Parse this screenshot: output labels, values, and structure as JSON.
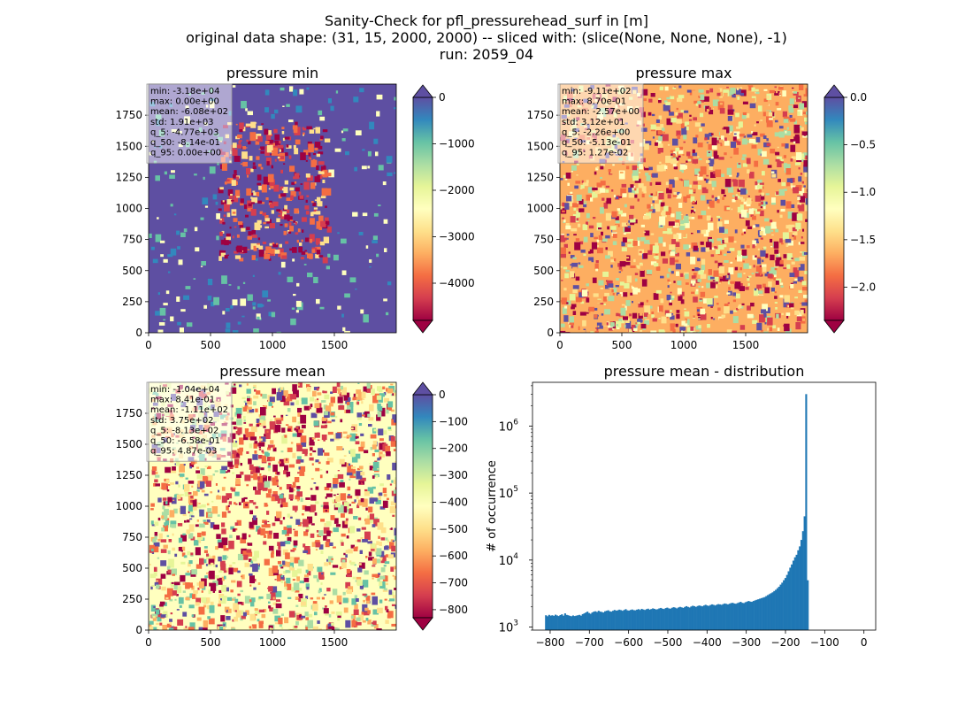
{
  "figure": {
    "title_lines": [
      "Sanity-Check for pfl_pressurehead_surf in [m]",
      "original data shape: (31, 15, 2000, 2000) -- sliced with: (slice(None, None, None), -1)",
      "run: 2059_04"
    ]
  },
  "colors": {
    "spectral": [
      "#9e0142",
      "#d53e4f",
      "#f46d43",
      "#fdae61",
      "#fee08b",
      "#ffffbf",
      "#e6f598",
      "#abdda4",
      "#66c2a5",
      "#3288bd",
      "#5e4fa2"
    ],
    "bar": "#1f77b4"
  },
  "chart_data": [
    {
      "type": "heatmap",
      "title": "pressure min",
      "x_ticks": [
        "0",
        "500",
        "1000",
        "1500"
      ],
      "y_ticks": [
        "0",
        "250",
        "500",
        "750",
        "1000",
        "1250",
        "1500",
        "1750"
      ],
      "xlim": [
        0,
        2000
      ],
      "ylim": [
        0,
        2000
      ],
      "colorbar": {
        "range": [
          -4800,
          0
        ],
        "ticks": [
          "0",
          "−1000",
          "−2000",
          "−3000",
          "−4000"
        ],
        "tick_values": [
          0,
          -1000,
          -2000,
          -3000,
          -4000
        ],
        "extend": "both"
      },
      "stats": [
        "min: -3.18e+04",
        "max: 0.00e+00",
        "mean: -6.08e+02",
        "std: 1.91e+03",
        "q_5: -4.77e+03",
        "q_50: -8.14e-01",
        "q_95: 0.00e+00"
      ],
      "background": "#5e4fa2"
    },
    {
      "type": "heatmap",
      "title": "pressure max",
      "x_ticks": [
        "0",
        "500",
        "1000",
        "1500"
      ],
      "y_ticks": [
        "0",
        "250",
        "500",
        "750",
        "1000",
        "1250",
        "1500",
        "1750"
      ],
      "xlim": [
        0,
        2000
      ],
      "ylim": [
        0,
        2000
      ],
      "colorbar": {
        "range": [
          -2.35,
          0
        ],
        "ticks": [
          "0.0",
          "−0.5",
          "−1.0",
          "−1.5",
          "−2.0"
        ],
        "tick_values": [
          0,
          -0.5,
          -1.0,
          -1.5,
          -2.0
        ],
        "extend": "both"
      },
      "stats": [
        "min: -9.11e+02",
        "max: 8.70e-01",
        "mean: -2.57e+00",
        "std: 3.12e+01",
        "q_5: -2.26e+00",
        "q_50: -5.13e-01",
        "q_95: 1.27e-02"
      ],
      "background": "#fdae61"
    },
    {
      "type": "heatmap",
      "title": "pressure mean",
      "x_ticks": [
        "0",
        "500",
        "1000",
        "1500"
      ],
      "y_ticks": [
        "0",
        "250",
        "500",
        "750",
        "1000",
        "1250",
        "1500",
        "1750"
      ],
      "xlim": [
        0,
        2000
      ],
      "ylim": [
        0,
        2000
      ],
      "colorbar": {
        "range": [
          -830,
          0
        ],
        "ticks": [
          "0",
          "−100",
          "−200",
          "−300",
          "−400",
          "−500",
          "−600",
          "−700",
          "−800"
        ],
        "tick_values": [
          0,
          -100,
          -200,
          -300,
          -400,
          -500,
          -600,
          -700,
          -800
        ],
        "extend": "both"
      },
      "stats": [
        "min: -1.04e+04",
        "max: 8.41e-01",
        "mean: -1.11e+02",
        "std: 3.75e+02",
        "q_5: -8.13e+02",
        "q_50: -6.58e-01",
        "q_95: 4.87e-03"
      ],
      "background": "#ffffbf"
    },
    {
      "type": "bar",
      "title": "pressure mean - distribution",
      "ylabel": "# of occurrence",
      "xlabel": "",
      "yscale": "log",
      "xlim": [
        -845,
        30
      ],
      "ylim": [
        900,
        4500000
      ],
      "x_ticks": [
        "−800",
        "−700",
        "−600",
        "−500",
        "−400",
        "−300",
        "−200",
        "−100",
        "0"
      ],
      "x_tick_values": [
        -800,
        -700,
        -600,
        -500,
        -400,
        -300,
        -200,
        -100,
        0
      ],
      "y_ticks": [
        {
          "base": "10",
          "exp": "3",
          "value": 1000
        },
        {
          "base": "10",
          "exp": "4",
          "value": 10000
        },
        {
          "base": "10",
          "exp": "5",
          "value": 100000
        },
        {
          "base": "10",
          "exp": "6",
          "value": 1000000
        }
      ],
      "bins": {
        "start": -813,
        "width": 4.07
      },
      "values": [
        1500,
        1450,
        1520,
        1480,
        1500,
        1470,
        1530,
        1490,
        1460,
        1510,
        1550,
        1480,
        1600,
        1520,
        1500,
        1470,
        1450,
        1490,
        1460,
        1480,
        1500,
        1520,
        1480,
        1560,
        1600,
        1650,
        1700,
        1620,
        1580,
        1650,
        1700,
        1720,
        1680,
        1750,
        1700,
        1680,
        1650,
        1720,
        1750,
        1780,
        1720,
        1700,
        1750,
        1800,
        1760,
        1780,
        1820,
        1790,
        1750,
        1800,
        1850,
        1780,
        1760,
        1800,
        1830,
        1790,
        1780,
        1820,
        1850,
        1800,
        1870,
        1830,
        1800,
        1850,
        1880,
        1820,
        1860,
        1900,
        1870,
        1830,
        1850,
        1900,
        1930,
        1880,
        1860,
        1920,
        1950,
        1900,
        1880,
        1940,
        1980,
        1950,
        1900,
        1960,
        2000,
        1970,
        1930,
        2000,
        2050,
        2000,
        1960,
        2030,
        2080,
        2050,
        2000,
        2060,
        2100,
        2070,
        2040,
        2100,
        2150,
        2100,
        2070,
        2130,
        2180,
        2150,
        2100,
        2160,
        2200,
        2180,
        2150,
        2200,
        2250,
        2220,
        2180,
        2230,
        2280,
        2300,
        2250,
        2230,
        2280,
        2330,
        2380,
        2300,
        2280,
        2350,
        2400,
        2450,
        2400,
        2380,
        2450,
        2500,
        2550,
        2600,
        2650,
        2700,
        2750,
        2800,
        2900,
        3000,
        3100,
        3200,
        3300,
        3450,
        3600,
        3800,
        4000,
        4300,
        4600,
        5000,
        5400,
        6000,
        6800,
        7700,
        8600,
        9800,
        11000,
        12000,
        14000,
        16000,
        20000,
        27000,
        45000,
        3000000,
        5000
      ]
    }
  ]
}
